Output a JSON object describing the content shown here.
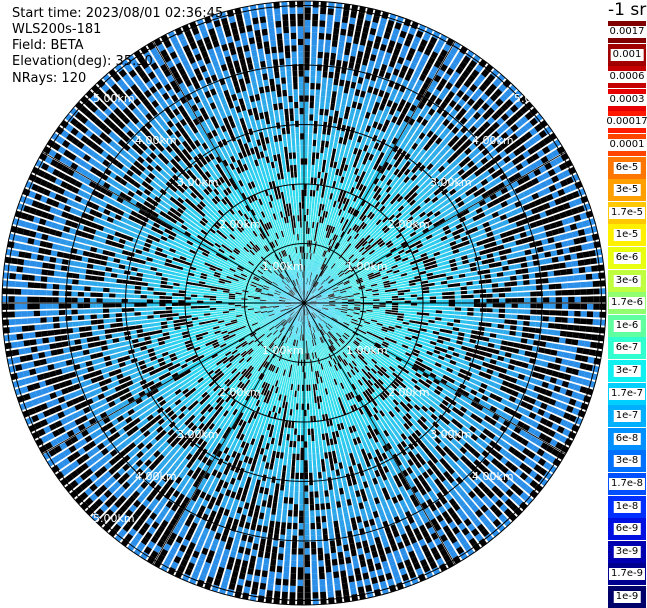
{
  "header": {
    "start_time": "Start time: 2023/08/01 02:36:45",
    "instrument": "WLS200s-181",
    "field": "Field: BETA",
    "elevation": "Elevation(deg): 35.30",
    "nrays": "NRays: 120"
  },
  "colorbar": {
    "unit": "-1 sr",
    "entries": [
      {
        "label": "0.0017",
        "color": "#800000"
      },
      {
        "label": "0.001",
        "color": "#a00000"
      },
      {
        "label": "0.0006",
        "color": "#c40000"
      },
      {
        "label": "0.0003",
        "color": "#e80000"
      },
      {
        "label": "0.00017",
        "color": "#ff1a00"
      },
      {
        "label": "0.0001",
        "color": "#ff4400"
      },
      {
        "label": "6e-5",
        "color": "#ff7700"
      },
      {
        "label": "3e-5",
        "color": "#ff9f00"
      },
      {
        "label": "1.7e-5",
        "color": "#ffc800"
      },
      {
        "label": "1e-5",
        "color": "#fff000"
      },
      {
        "label": "6e-6",
        "color": "#e8ff10"
      },
      {
        "label": "3e-6",
        "color": "#c0ff40"
      },
      {
        "label": "1.7e-6",
        "color": "#90ff70"
      },
      {
        "label": "1e-6",
        "color": "#60ffa0"
      },
      {
        "label": "6e-7",
        "color": "#30ffd0"
      },
      {
        "label": "3e-7",
        "color": "#10f0f0"
      },
      {
        "label": "1.7e-7",
        "color": "#00d0ff"
      },
      {
        "label": "1e-7",
        "color": "#00b0ff"
      },
      {
        "label": "6e-8",
        "color": "#0090ff"
      },
      {
        "label": "3e-8",
        "color": "#0070ff"
      },
      {
        "label": "1.7e-8",
        "color": "#0050ff"
      },
      {
        "label": "1e-8",
        "color": "#0030ff"
      },
      {
        "label": "6e-9",
        "color": "#0010e0"
      },
      {
        "label": "3e-9",
        "color": "#0000b0"
      },
      {
        "label": "1.7e-9",
        "color": "#000090"
      },
      {
        "label": "1e-9",
        "color": "#00006a"
      }
    ]
  },
  "range_rings": [
    {
      "label": "1.00km"
    },
    {
      "label": "2.00km"
    },
    {
      "label": "3.00km"
    },
    {
      "label": "4.00km"
    },
    {
      "label": "5.00km"
    }
  ],
  "palette": {
    "core": "#30c8ff",
    "inner": "#3ce8e6",
    "mid": "#2fb8ec",
    "outer": "#2b8ee8",
    "dark": "#1f6bd8",
    "bright": "#28d8f0",
    "grid": "#000000",
    "gap": "#ffffff"
  },
  "map": {
    "total_rays": 120
  }
}
